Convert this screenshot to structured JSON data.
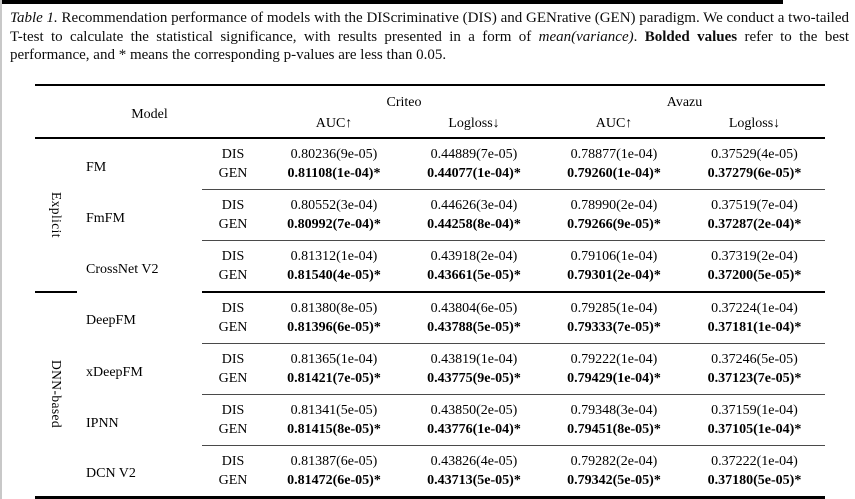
{
  "caption": {
    "label": "Table 1.",
    "body1": " Recommendation performance of models with the DIScriminative (DIS) and GENrative (GEN) paradigm. We conduct a two-tailed T-test to calculate the statistical significance, with results presented in a form of ",
    "italic_term": "mean(variance)",
    "body2": ". ",
    "bold_term": "Bolded values",
    "body3": " refer to the best performance, and * means the corresponding p-values are less than 0.05."
  },
  "colors": {
    "rule_black": "#000000",
    "thin_rule": "#4a4a4a",
    "page_edge_gray": "#c8c8c8"
  },
  "table": {
    "header": {
      "model": "Model",
      "datasets": [
        "Criteo",
        "Avazu"
      ],
      "metrics": [
        "AUC↑",
        "Logloss↓",
        "AUC↑",
        "Logloss↓"
      ]
    },
    "paradigms": [
      "DIS",
      "GEN"
    ],
    "groups": [
      {
        "label": "Explicit",
        "models": [
          {
            "name": "FM",
            "dis": [
              "0.80236(9e-05)",
              "0.44889(7e-05)",
              "0.78877(1e-04)",
              "0.37529(4e-05)"
            ],
            "gen": [
              "0.81108(1e-04)*",
              "0.44077(1e-04)*",
              "0.79260(1e-04)*",
              "0.37279(6e-05)*"
            ]
          },
          {
            "name": "FmFM",
            "dis": [
              "0.80552(3e-04)",
              "0.44626(3e-04)",
              "0.78990(2e-04)",
              "0.37519(7e-04)"
            ],
            "gen": [
              "0.80992(7e-04)*",
              "0.44258(8e-04)*",
              "0.79266(9e-05)*",
              "0.37287(2e-04)*"
            ]
          },
          {
            "name": "CrossNet V2",
            "dis": [
              "0.81312(1e-04)",
              "0.43918(2e-04)",
              "0.79106(1e-04)",
              "0.37319(2e-04)"
            ],
            "gen": [
              "0.81540(4e-05)*",
              "0.43661(5e-05)*",
              "0.79301(2e-04)*",
              "0.37200(5e-05)*"
            ]
          }
        ]
      },
      {
        "label": "DNN-based",
        "models": [
          {
            "name": "DeepFM",
            "dis": [
              "0.81380(8e-05)",
              "0.43804(6e-05)",
              "0.79285(1e-04)",
              "0.37224(1e-04)"
            ],
            "gen": [
              "0.81396(6e-05)*",
              "0.43788(5e-05)*",
              "0.79333(7e-05)*",
              "0.37181(1e-04)*"
            ]
          },
          {
            "name": "xDeepFM",
            "dis": [
              "0.81365(1e-04)",
              "0.43819(1e-04)",
              "0.79222(1e-04)",
              "0.37246(5e-05)"
            ],
            "gen": [
              "0.81421(7e-05)*",
              "0.43775(9e-05)*",
              "0.79429(1e-04)*",
              "0.37123(7e-05)*"
            ]
          },
          {
            "name": "IPNN",
            "dis": [
              "0.81341(5e-05)",
              "0.43850(2e-05)",
              "0.79348(3e-04)",
              "0.37159(1e-04)"
            ],
            "gen": [
              "0.81415(8e-05)*",
              "0.43776(1e-04)*",
              "0.79451(8e-05)*",
              "0.37105(1e-04)*"
            ]
          },
          {
            "name": "DCN V2",
            "dis": [
              "0.81387(6e-05)",
              "0.43826(4e-05)",
              "0.79282(2e-04)",
              "0.37222(1e-04)"
            ],
            "gen": [
              "0.81472(6e-05)*",
              "0.43713(5e-05)*",
              "0.79342(5e-05)*",
              "0.37180(5e-05)*"
            ]
          }
        ]
      }
    ]
  }
}
